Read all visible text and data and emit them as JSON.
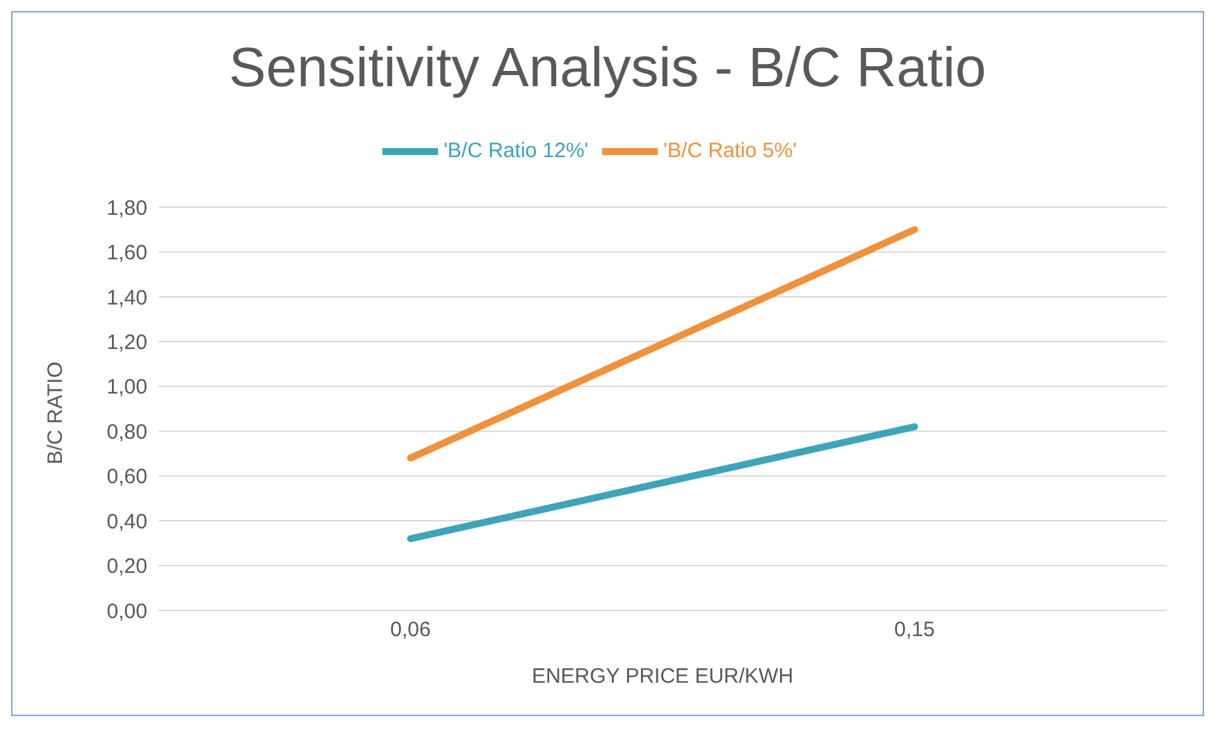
{
  "chart_data": {
    "type": "line",
    "title": "Sensitivity Analysis - B/C Ratio",
    "xlabel": "ENERGY PRICE EUR/KWH",
    "ylabel": "B/C RATIO",
    "categories": [
      "0,06",
      "0,15"
    ],
    "series": [
      {
        "name": "'B/C Ratio 5%'",
        "color": "#f0913d",
        "values": [
          0.68,
          1.7
        ]
      },
      {
        "name": "'B/C Ratio 12%'",
        "color": "#3ea4b8",
        "values": [
          0.32,
          0.82
        ]
      }
    ],
    "ylim": [
      0,
      1.8
    ],
    "yticks": [
      {
        "value": 0,
        "label": "0,00"
      },
      {
        "value": 0.2,
        "label": "0,20"
      },
      {
        "value": 0.4,
        "label": "0,40"
      },
      {
        "value": 0.6,
        "label": "0,60"
      },
      {
        "value": 0.8,
        "label": "0,80"
      },
      {
        "value": 1,
        "label": "1,00"
      },
      {
        "value": 1.2,
        "label": "1,20"
      },
      {
        "value": 1.4,
        "label": "1,40"
      },
      {
        "value": 1.6,
        "label": "1,60"
      },
      {
        "value": 1.8,
        "label": "1,80"
      }
    ],
    "grid": "y",
    "legend": "top",
    "marker": "none",
    "line_style": "solid"
  }
}
